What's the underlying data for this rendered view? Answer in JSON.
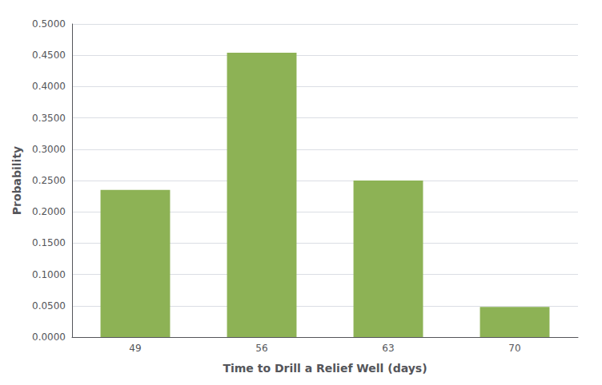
{
  "chart_data": {
    "type": "bar",
    "categories": [
      "49",
      "56",
      "63",
      "70"
    ],
    "values": [
      0.235,
      0.454,
      0.25,
      0.048
    ],
    "color": "#8DB255",
    "xlabel": "Time to Drill a Relief Well (days)",
    "ylabel": "Probability",
    "ylim": [
      0.0,
      0.5
    ],
    "yticks": [
      {
        "value": 0.0,
        "label": "0.0000"
      },
      {
        "value": 0.05,
        "label": "0.0500"
      },
      {
        "value": 0.1,
        "label": "0.1000"
      },
      {
        "value": 0.15,
        "label": "0.1500"
      },
      {
        "value": 0.2,
        "label": "0.2000"
      },
      {
        "value": 0.25,
        "label": "0.2500"
      },
      {
        "value": 0.3,
        "label": "0.3000"
      },
      {
        "value": 0.35,
        "label": "0.3500"
      },
      {
        "value": 0.4,
        "label": "0.4000"
      },
      {
        "value": 0.45,
        "label": "0.4500"
      },
      {
        "value": 0.5,
        "label": "0.5000"
      }
    ],
    "grid": true
  }
}
